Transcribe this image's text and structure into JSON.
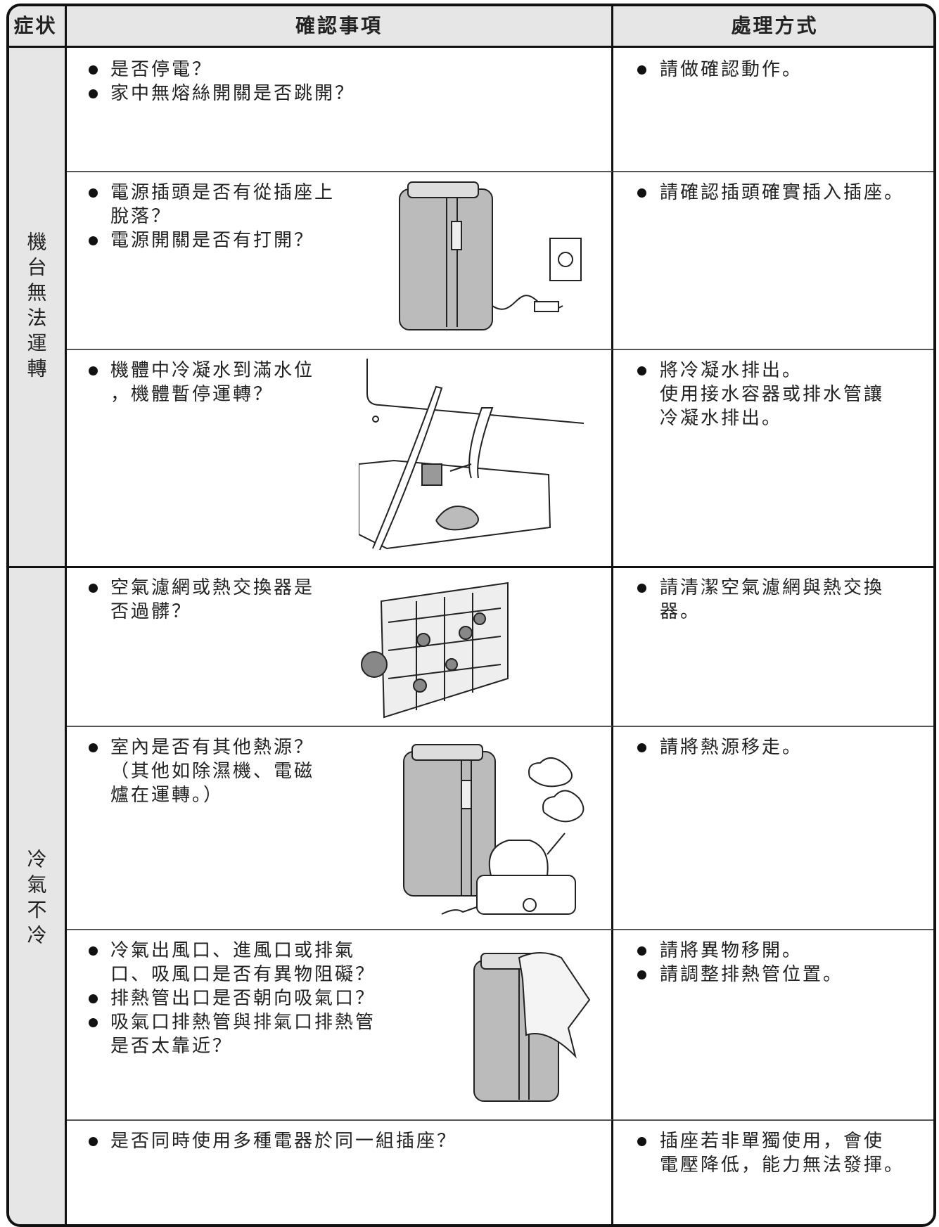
{
  "header": [
    "症状",
    "確認事項",
    "處理方式"
  ],
  "groups": [
    {
      "symptom": "機台無法運轉",
      "rows": [
        {
          "checks": [
            [
              "是否停電？"
            ],
            [
              "家中無熔絲開關是否跳開？"
            ]
          ],
          "actions": [
            [
              "請做確認動作。"
            ]
          ]
        },
        {
          "checks": [
            [
              "電源插頭是否有從插座上",
              "脫落？"
            ],
            [
              "電源開關是否有打開？"
            ]
          ],
          "actions": [
            [
              "請確認插頭確實插入插座。"
            ]
          ]
        },
        {
          "checks": [
            [
              "機體中冷凝水到滿水位",
              "，機體暫停運轉？"
            ]
          ],
          "actions": [
            [
              "將冷凝水排出。",
              "使用接水容器或排水管讓",
              "冷凝水排出。"
            ]
          ]
        }
      ]
    },
    {
      "symptom": "冷氣不冷",
      "rows": [
        {
          "checks": [
            [
              "空氣濾網或熱交換器是",
              "否過髒？"
            ]
          ],
          "actions": [
            [
              "請清潔空氣濾網與熱交換",
              "器。"
            ]
          ]
        },
        {
          "checks": [
            [
              "室內是否有其他熱源？",
              "（其他如除濕機、電磁",
              "爐在運轉。）"
            ]
          ],
          "actions": [
            [
              "請將熱源移走。"
            ]
          ]
        },
        {
          "checks": [
            [
              "冷氣出風口、進風口或排氣",
              "口、吸風口是否有異物阻礙？"
            ],
            [
              "排熱管出口是否朝向吸氣口？"
            ],
            [
              "吸氣口排熱管與排氣口排熱管",
              "是否太靠近？"
            ]
          ],
          "actions": [
            [
              "請將異物移開。"
            ],
            [
              "請調整排熱管位置。"
            ]
          ]
        },
        {
          "checks": [
            [
              "是否同時使用多種電器於同一組插座？"
            ]
          ],
          "actions": [
            [
              "插座若非單獨使用，會使",
              "電壓降低，能力無法發揮。"
            ]
          ]
        }
      ]
    }
  ]
}
